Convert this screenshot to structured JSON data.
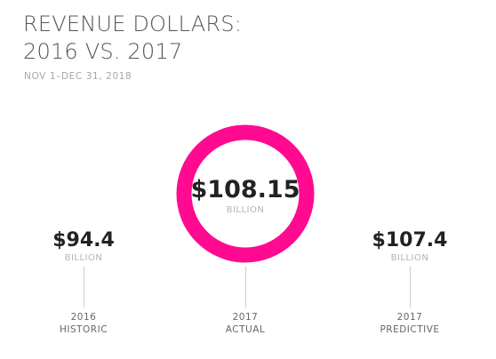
{
  "header": {
    "title_line1": "REVENUE DOLLARS:",
    "title_line2": "2016 VS. 2017",
    "subtitle": "NOV 1–DEC 31, 2018"
  },
  "colors": {
    "ring": "#ff0a91",
    "value_text": "#222222",
    "unit_text": "#b3b3b3"
  },
  "chart_data": {
    "type": "bar",
    "title": "REVENUE DOLLARS: 2016 VS. 2017",
    "subtitle": "NOV 1–DEC 31, 2018",
    "unit": "BILLION",
    "categories": [
      "2016 HISTORIC",
      "2017 ACTUAL",
      "2017 PREDICTIVE"
    ],
    "values": [
      94.4,
      108.15,
      107.4
    ],
    "labels": [
      "$94.4",
      "$108.15",
      "$107.4"
    ],
    "items": [
      {
        "year": "2016",
        "kind": "HISTORIC",
        "value_label": "$94.4",
        "unit": "BILLION"
      },
      {
        "year": "2017",
        "kind": "ACTUAL",
        "value_label": "$108.15",
        "unit": "BILLION"
      },
      {
        "year": "2017",
        "kind": "PREDICTIVE",
        "value_label": "$107.4",
        "unit": "BILLION"
      }
    ]
  }
}
